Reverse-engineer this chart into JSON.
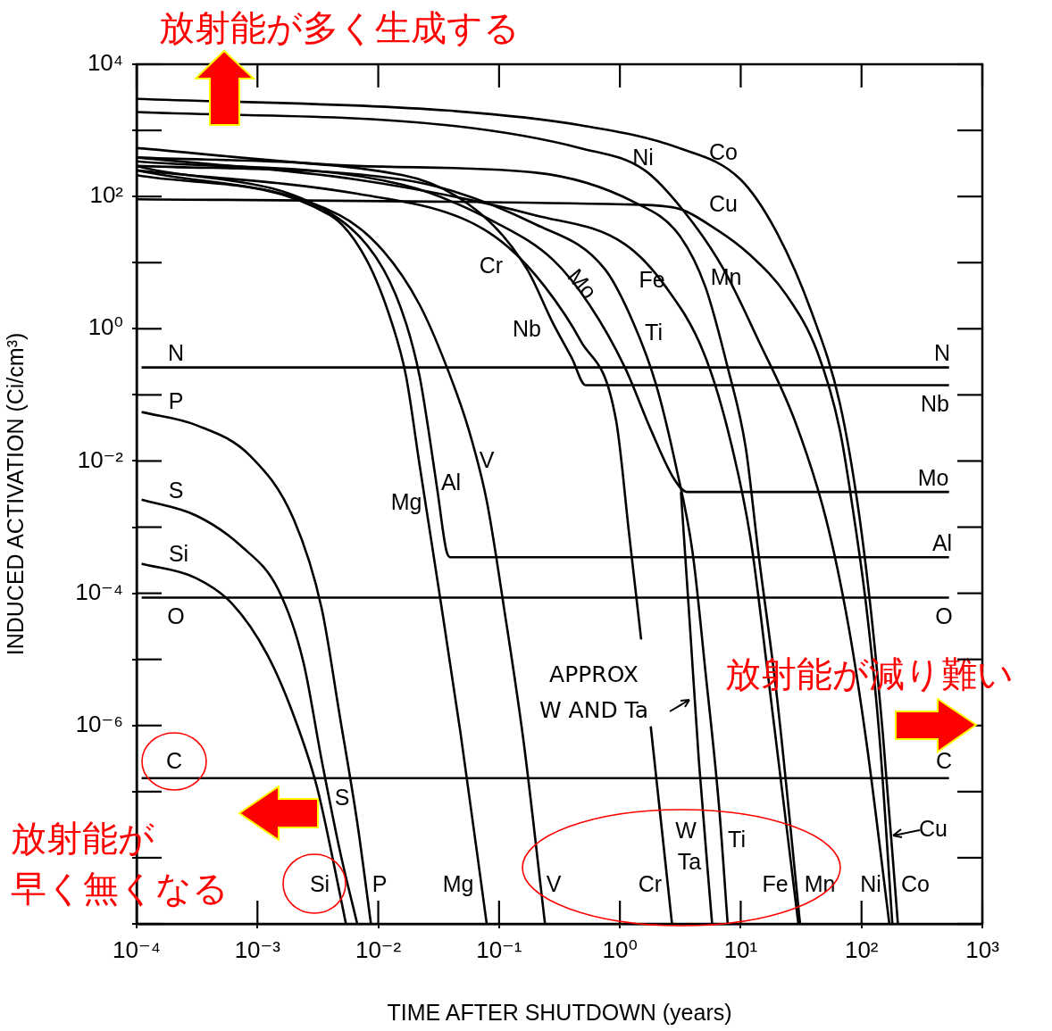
{
  "chart_data": {
    "type": "line",
    "xlabel": "TIME AFTER SHUTDOWN (years)",
    "ylabel": "INDUCED ACTIVATION (Ci/cm³)",
    "log": "xy",
    "xlim": [
      0.0001,
      1000
    ],
    "ylim": [
      1e-09,
      10000
    ],
    "xticks": [
      {
        "value": 0.0001,
        "label": "10⁻⁴"
      },
      {
        "value": 0.001,
        "label": "10⁻³"
      },
      {
        "value": 0.01,
        "label": "10⁻²"
      },
      {
        "value": 0.1,
        "label": "10⁻¹"
      },
      {
        "value": 1,
        "label": "10⁰"
      },
      {
        "value": 10,
        "label": "10¹"
      },
      {
        "value": 100,
        "label": "10²"
      },
      {
        "value": 1000,
        "label": "10³"
      }
    ],
    "yticks": [
      {
        "value": 1e-09,
        "label": null
      },
      {
        "value": 1e-08,
        "label": null
      },
      {
        "value": 1e-07,
        "label": null
      },
      {
        "value": 1e-06,
        "label": "10⁻⁶"
      },
      {
        "value": 1e-05,
        "label": null
      },
      {
        "value": 0.0001,
        "label": "10⁻⁴"
      },
      {
        "value": 0.001,
        "label": null
      },
      {
        "value": 0.01,
        "label": "10⁻²"
      },
      {
        "value": 0.1,
        "label": null
      },
      {
        "value": 1,
        "label": "10⁰"
      },
      {
        "value": 10,
        "label": null
      },
      {
        "value": 100,
        "label": "10²"
      },
      {
        "value": 1000,
        "label": null
      },
      {
        "value": 10000,
        "label": "10⁴"
      }
    ],
    "series": [
      {
        "color": "#000000",
        "x": [
          0.00011,
          530
        ],
        "values": [
          0.26,
          0.26
        ]
      },
      {
        "color": "#000000",
        "x": [
          0.00011,
          530
        ],
        "values": [
          8.6e-05,
          8.6e-05
        ]
      },
      {
        "color": "#000000",
        "x": [
          0.00011,
          530
        ],
        "values": [
          1.6e-07,
          1.6e-07
        ]
      },
      {
        "color": "#000000",
        "x": [
          0.0001,
          0.016,
          0.073,
          0.17,
          0.28,
          0.4,
          0.52,
          530
        ],
        "values": [
          390,
          210,
          52,
          8,
          1.2,
          0.36,
          0.14,
          0.14
        ]
      },
      {
        "color": "#000000",
        "x": [
          0.0001,
          0.016,
          0.1,
          0.28,
          0.56,
          1.1,
          1.8,
          2.8,
          3.6,
          530
        ],
        "values": [
          340,
          150,
          38,
          11,
          2.3,
          0.26,
          0.03,
          0.0054,
          0.0034,
          0.0034
        ]
      },
      {
        "color": "#000000",
        "x": [
          0.0001,
          0.0048,
          0.011,
          0.017,
          0.022,
          0.026,
          0.031,
          0.037,
          0.04,
          530
        ],
        "values": [
          290,
          45,
          8,
          1.2,
          0.19,
          0.03,
          0.0034,
          0.00041,
          0.00035,
          0.00035
        ]
      },
      {
        "color": "#000000",
        "x": [
          0.0001,
          0.004,
          0.008,
          0.013,
          0.017,
          0.022,
          0.031,
          0.048,
          0.079
        ],
        "values": [
          210,
          52,
          11,
          1.2,
          0.19,
          0.0086,
          0.00015,
          7.6e-07,
          1e-09
        ]
      },
      {
        "color": "#000000",
        "x": [
          0.0001,
          0.0048,
          0.011,
          0.022,
          0.037,
          0.056,
          0.079,
          0.11,
          0.16,
          0.24
        ],
        "values": [
          250,
          52,
          15,
          2.3,
          0.26,
          0.03,
          0.0025,
          5.9e-05,
          5.5e-07,
          1e-09
        ]
      },
      {
        "color": "#000000",
        "x": [
          0.0001,
          0.0067,
          0.052,
          0.12,
          0.24,
          0.47,
          0.93,
          1.2,
          1.5,
          1.6,
          1.8,
          2.7
        ],
        "values": [
          250,
          110,
          45,
          17,
          4.3,
          0.67,
          0.041,
          0.00071,
          2e-05,
          null,
          9.7e-07,
          1e-09
        ]
      },
      {
        "color": "#000000",
        "x": [
          3.2,
          3.8,
          4.5,
          5.8
        ],
        "values": [
          0.0034,
          3.2e-05,
          3e-07,
          1e-09
        ]
      },
      {
        "color": "#000000",
        "x": [
          0.0001,
          0.016,
          0.2,
          0.75,
          1.3,
          2,
          2.9,
          4,
          5.1,
          6.6,
          7.8
        ],
        "values": [
          290,
          180,
          38,
          8,
          1.2,
          0.14,
          0.0086,
          0.00041,
          6.7e-06,
          6.3e-08,
          1e-09
        ]
      },
      {
        "color": "#000000",
        "x": [
          0.0001,
          0.0067,
          0.2,
          1.1,
          2.4,
          4.9,
          7.8,
          12,
          17,
          30
        ],
        "values": [
          390,
          180,
          52,
          19,
          4.3,
          0.45,
          0.03,
          0.00071,
          4.9e-06,
          1e-09
        ]
      },
      {
        "color": "#000000",
        "x": [
          0.0001,
          0.0067,
          0.2,
          1.3,
          3.1,
          5.1,
          7.8,
          11,
          14,
          20,
          31
        ],
        "values": [
          540,
          290,
          230,
          83,
          26,
          4.3,
          0.26,
          0.016,
          0.00041,
          2.6e-06,
          1e-09
        ]
      },
      {
        "color": "#000000",
        "x": [
          0.0001,
          1.1,
          2.9,
          6.1,
          12,
          24,
          43,
          66,
          85,
          110,
          140,
          180
        ],
        "values": [
          91,
          76,
          67,
          33,
          13,
          3.2,
          0.45,
          0.03,
          0.0018,
          5.9e-05,
          7.6e-07,
          1e-09
        ]
      },
      {
        "color": "#000000",
        "x": [
          0.0001,
          0.037,
          0.47,
          1.6,
          3.6,
          7.2,
          14,
          28,
          51,
          78,
          110,
          170
        ],
        "values": [
          1900,
          1200,
          540,
          250,
          52,
          8,
          0.67,
          0.041,
          0.0013,
          3.2e-05,
          5.5e-07,
          1e-09
        ]
      },
      {
        "color": "#000000",
        "x": [
          0.0001,
          0.037,
          0.47,
          3.1,
          10,
          20,
          39,
          66,
          92,
          119,
          150,
          200
        ],
        "values": [
          3000,
          2000,
          1200,
          540,
          180,
          28,
          1.7,
          0.076,
          0.0025,
          5.9e-05,
          7.6e-07,
          1e-09
        ]
      },
      {
        "color": "#000000",
        "x": [
          0.00011,
          0.00031,
          0.00087,
          0.002,
          0.0034,
          0.0048,
          0.0067,
          0.0087
        ],
        "values": [
          0.055,
          0.035,
          0.012,
          0.0013,
          5.9e-05,
          1.4e-06,
          3.4e-08,
          1e-09
        ]
      },
      {
        "color": "#000000",
        "x": [
          0.00011,
          0.00031,
          0.00073,
          0.0015,
          0.0024,
          0.0034,
          0.0048,
          0.0067
        ],
        "values": [
          0.0026,
          0.0015,
          0.00052,
          0.00011,
          9.1e-06,
          3e-07,
          1.3e-08,
          1e-09
        ]
      },
      {
        "color": "#000000",
        "x": [
          0.00011,
          0.00031,
          0.00062,
          0.0012,
          0.002,
          0.0031,
          0.0042,
          0.0054
        ],
        "values": [
          0.00028,
          0.00017,
          6.9e-05,
          1.2e-05,
          1.4e-06,
          1.2e-07,
          9.7e-09,
          1e-09
        ]
      }
    ],
    "annotations": [
      "放射能が多く生成する",
      "放射能が減り難い",
      "放射能が",
      "早く無くなる",
      "APPROX\nW AND Ta",
      "Co",
      "Ni",
      "Cu",
      "Mn",
      "Fe",
      "Ti",
      "Mo",
      "Nb",
      "Cr",
      "V",
      "Al",
      "Mg",
      "N",
      "P",
      "S",
      "Si",
      "O",
      "C",
      "N",
      "Nb",
      "Mo",
      "Al",
      "O",
      "C",
      "Si",
      "S",
      "P",
      "Mg",
      "V",
      "Cr",
      "W",
      "Ta",
      "Ti",
      "Fe",
      "Mn",
      "Ni",
      "Co",
      "Cu"
    ]
  }
}
